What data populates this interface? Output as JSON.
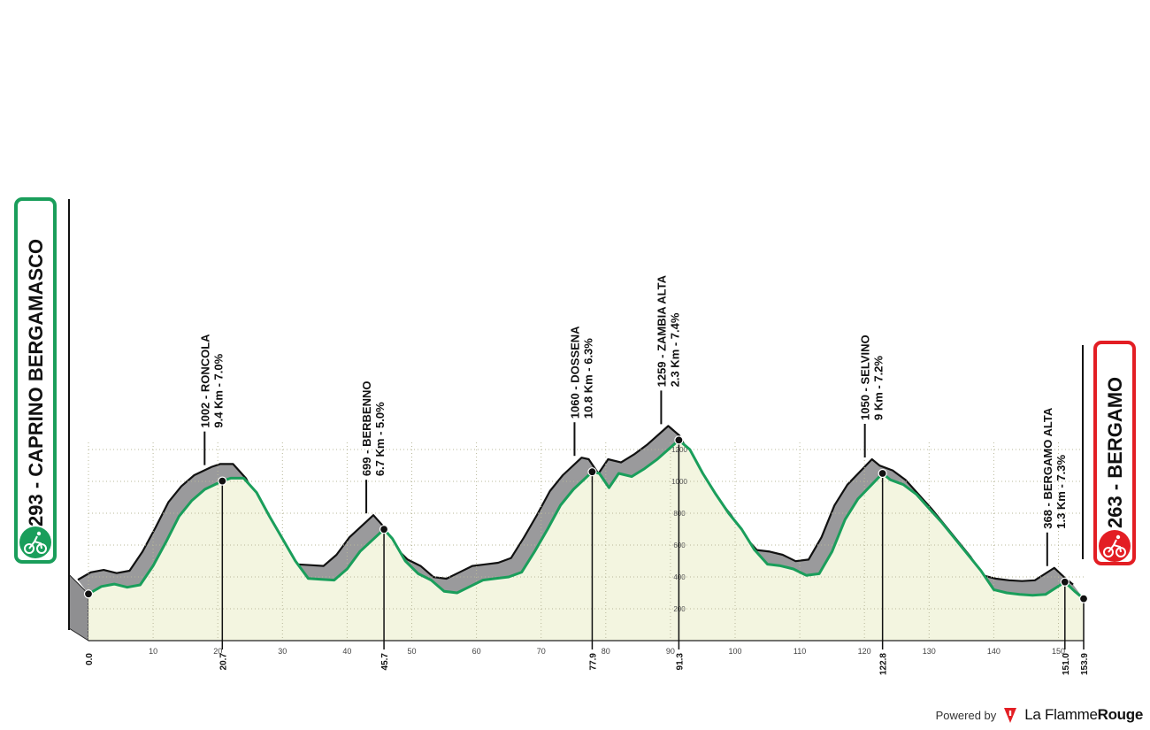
{
  "chart_data": {
    "type": "area",
    "title": "",
    "xlabel": "",
    "ylabel": "",
    "xlim": [
      0,
      153.9
    ],
    "ylim": [
      0,
      1300
    ],
    "start": {
      "elevation": "293",
      "name": "CAPRINO BERGAMASCO"
    },
    "finish": {
      "elevation": "263",
      "name": "BERGAMO"
    },
    "colors": {
      "start": "#1a9e5b",
      "finish": "#e31e24",
      "profile_fill": "#f3f5e0",
      "climb_fill": "#9a9a9c",
      "profile_line": "#1a9e5b"
    },
    "profile": {
      "x": [
        0,
        2,
        4,
        6,
        8,
        10,
        12,
        14,
        16,
        18,
        20.7,
        22,
        24,
        26,
        28,
        30,
        32,
        34,
        36,
        38,
        40,
        42,
        45.7,
        47,
        49,
        51,
        53,
        55,
        57,
        59,
        61,
        63,
        65,
        67,
        69,
        71,
        73,
        75,
        77.9,
        79,
        80.5,
        82,
        84,
        86,
        88,
        91.3,
        93,
        95,
        97,
        99,
        101,
        103,
        105,
        107,
        109,
        111,
        113,
        115,
        117,
        119,
        122.8,
        124,
        126,
        128,
        130,
        132,
        134,
        136,
        138,
        140,
        142,
        144,
        146,
        148,
        151,
        152.5,
        153.9
      ],
      "y": [
        293,
        340,
        355,
        335,
        350,
        470,
        620,
        780,
        880,
        950,
        1002,
        1020,
        1020,
        930,
        780,
        640,
        500,
        390,
        385,
        380,
        450,
        560,
        699,
        640,
        500,
        420,
        380,
        310,
        300,
        340,
        380,
        390,
        400,
        430,
        560,
        700,
        850,
        950,
        1060,
        1050,
        960,
        1050,
        1030,
        1080,
        1140,
        1259,
        1200,
        1050,
        920,
        800,
        700,
        570,
        480,
        470,
        450,
        410,
        420,
        560,
        760,
        890,
        1050,
        1010,
        980,
        920,
        830,
        740,
        640,
        540,
        440,
        320,
        300,
        290,
        285,
        290,
        368,
        310,
        263
      ]
    },
    "x_ticks": [
      0,
      10,
      20,
      30,
      40,
      50,
      60,
      70,
      80,
      90,
      100,
      110,
      120,
      130,
      140,
      150
    ],
    "y_ticks": [
      200,
      400,
      600,
      800,
      1000,
      1200
    ],
    "km_markers": [
      "0.0",
      "20.7",
      "45.7",
      "77.9",
      "91.3",
      "122.8",
      "151.0",
      "153.9"
    ],
    "climbs": [
      {
        "km": 20.7,
        "elevation": 1002,
        "name": "1002 - RONCOLA",
        "stats": "9.4 Km - 7.0%"
      },
      {
        "km": 45.7,
        "elevation": 699,
        "name": "699 - BERBENNO",
        "stats": "6.7 Km - 5.0%"
      },
      {
        "km": 77.9,
        "elevation": 1060,
        "name": "1060 - DOSSENA",
        "stats": "10.8 Km - 6.3%"
      },
      {
        "km": 91.3,
        "elevation": 1259,
        "name": "1259 - ZAMBIA ALTA",
        "stats": "2.3 Km - 7.4%"
      },
      {
        "km": 122.8,
        "elevation": 1050,
        "name": "1050 - SELVINO",
        "stats": "9 Km - 7.2%"
      },
      {
        "km": 151.0,
        "elevation": 368,
        "name": "368 - BERGAMO ALTA",
        "stats": "1.3 Km - 7.3%"
      }
    ]
  },
  "footer": {
    "powered": "Powered by",
    "brand_a": "La Flamme",
    "brand_b": "Rouge"
  }
}
